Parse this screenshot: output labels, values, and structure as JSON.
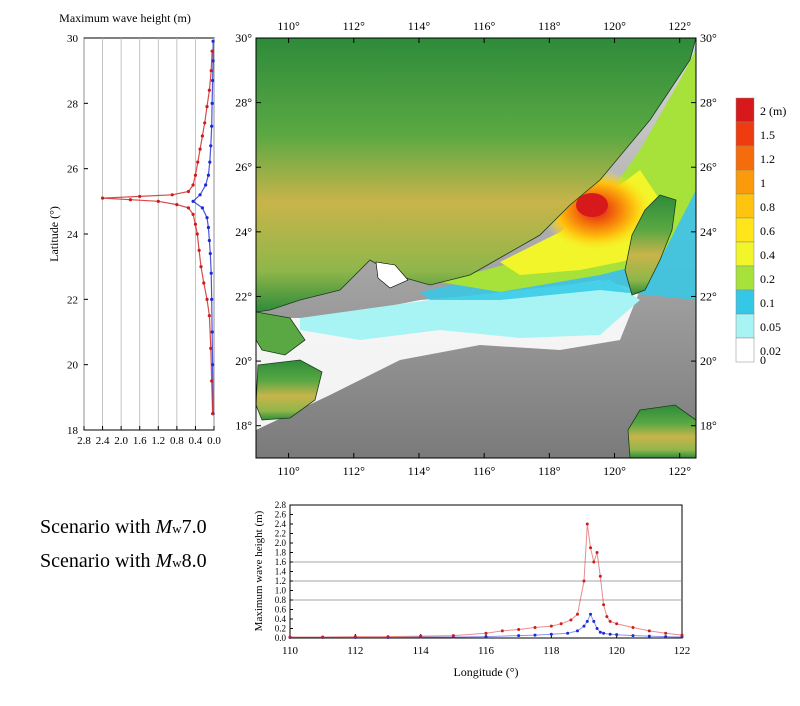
{
  "left_plot": {
    "title": "Maximum wave height (m)",
    "ylabel": "Latitude (°)",
    "xticks": [
      "2.8",
      "2.4",
      "2.0",
      "1.6",
      "1.2",
      "0.8",
      "0.4",
      "0.0"
    ],
    "yticks": [
      "18",
      "20",
      "22",
      "24",
      "26",
      "28",
      "30"
    ],
    "xlim": [
      2.8,
      0.0
    ],
    "ylim": [
      18,
      30
    ]
  },
  "map": {
    "lon_ticks": [
      "110°",
      "112°",
      "114°",
      "116°",
      "118°",
      "120°",
      "122°"
    ],
    "lat_ticks": [
      "18°",
      "20°",
      "22°",
      "24°",
      "26°",
      "28°",
      "30°"
    ],
    "colors": {
      "sea_deep": "#8f8f8f",
      "land_low": "#2e8b3a",
      "land_mid": "#c8b44a",
      "land_high": "#8a5a2b"
    }
  },
  "legend": {
    "unit": "(m)",
    "levels": [
      {
        "label": "2",
        "color": "#d7191c"
      },
      {
        "label": "1.5",
        "color": "#ee3b10"
      },
      {
        "label": "1.2",
        "color": "#f46d0a"
      },
      {
        "label": "1",
        "color": "#fb9b0c"
      },
      {
        "label": "0.8",
        "color": "#fec40f"
      },
      {
        "label": "0.6",
        "color": "#ffe51a"
      },
      {
        "label": "0.4",
        "color": "#f2f52a"
      },
      {
        "label": "0.2",
        "color": "#a6e23a"
      },
      {
        "label": "0.1",
        "color": "#35c8e6"
      },
      {
        "label": "0.05",
        "color": "#a8f4f4"
      },
      {
        "label": "0.02",
        "color": "#ffffff"
      },
      {
        "label": "0",
        "color": ""
      }
    ]
  },
  "scenarios": [
    {
      "prefix": "Scenario with ",
      "mw": "M",
      "sub": "w",
      "mag": "7.0",
      "color": "#1c2bd6"
    },
    {
      "prefix": "Scenario with ",
      "mw": "M",
      "sub": "w",
      "mag": "8.0",
      "color": "#d11b1b"
    }
  ],
  "bottom_plot": {
    "xlabel": "Longitude (°)",
    "ylabel": "Maximum wave height (m)",
    "xticks": [
      "110",
      "112",
      "114",
      "116",
      "118",
      "120",
      "122"
    ],
    "yticks": [
      "0.0",
      "0.2",
      "0.4",
      "0.6",
      "0.8",
      "1.0",
      "1.2",
      "1.4",
      "1.6",
      "1.8",
      "2.0",
      "2.2",
      "2.4",
      "2.6",
      "2.8"
    ],
    "xlim": [
      110,
      122
    ],
    "ylim": [
      0,
      2.8
    ]
  },
  "chart_data": [
    {
      "type": "scatter",
      "title": "Maximum wave height (m)",
      "ylabel": "Latitude (°)",
      "xlim": [
        2.8,
        0.0
      ],
      "ylim": [
        18,
        30
      ],
      "series": [
        {
          "name": "Scenario with Mw7.0",
          "color": "#1c2bd6",
          "x": [
            0.02,
            0.03,
            0.04,
            0.05,
            0.06,
            0.08,
            0.1,
            0.12,
            0.15,
            0.25,
            0.45,
            0.3,
            0.18,
            0.12,
            0.09,
            0.07,
            0.05,
            0.04,
            0.03,
            0.02,
            0.02
          ],
          "y": [
            18.5,
            20.0,
            21.0,
            22.0,
            22.8,
            23.4,
            23.8,
            24.2,
            24.5,
            24.8,
            25.0,
            25.2,
            25.5,
            25.8,
            26.2,
            26.7,
            27.3,
            28.0,
            28.7,
            29.3,
            29.9
          ]
        },
        {
          "name": "Scenario with Mw8.0",
          "color": "#d11b1b",
          "x": [
            0.03,
            0.05,
            0.07,
            0.1,
            0.15,
            0.22,
            0.28,
            0.32,
            0.36,
            0.4,
            0.45,
            0.55,
            0.8,
            1.2,
            1.8,
            2.4,
            1.6,
            0.9,
            0.55,
            0.45,
            0.4,
            0.35,
            0.3,
            0.25,
            0.2,
            0.15,
            0.1,
            0.06,
            0.04
          ],
          "y": [
            18.5,
            19.5,
            20.5,
            21.5,
            22.0,
            22.5,
            23.0,
            23.5,
            24.0,
            24.3,
            24.6,
            24.8,
            24.9,
            25.0,
            25.05,
            25.1,
            25.15,
            25.2,
            25.3,
            25.5,
            25.8,
            26.2,
            26.6,
            27.0,
            27.4,
            27.9,
            28.4,
            29.0,
            29.6
          ]
        }
      ]
    },
    {
      "type": "scatter",
      "xlabel": "Longitude (°)",
      "ylabel": "Maximum wave height (m)",
      "xlim": [
        110,
        122
      ],
      "ylim": [
        0,
        2.8
      ],
      "series": [
        {
          "name": "Scenario with Mw7.0",
          "color": "#1c2bd6",
          "x": [
            110.0,
            111.0,
            112.0,
            113.0,
            114.0,
            115.0,
            116.0,
            117.0,
            117.5,
            118.0,
            118.5,
            118.8,
            119.0,
            119.1,
            119.2,
            119.3,
            119.4,
            119.5,
            119.6,
            119.8,
            120.0,
            120.5,
            121.0,
            121.5,
            122.0
          ],
          "y": [
            0.01,
            0.01,
            0.01,
            0.01,
            0.02,
            0.02,
            0.03,
            0.05,
            0.06,
            0.08,
            0.1,
            0.15,
            0.25,
            0.35,
            0.5,
            0.35,
            0.2,
            0.12,
            0.1,
            0.08,
            0.07,
            0.05,
            0.04,
            0.03,
            0.02
          ]
        },
        {
          "name": "Scenario with Mw8.0",
          "color": "#d11b1b",
          "x": [
            110.0,
            111.0,
            112.0,
            113.0,
            114.0,
            115.0,
            116.0,
            116.5,
            117.0,
            117.5,
            118.0,
            118.3,
            118.6,
            118.8,
            119.0,
            119.1,
            119.2,
            119.3,
            119.4,
            119.5,
            119.6,
            119.7,
            119.8,
            120.0,
            120.5,
            121.0,
            121.5,
            122.0
          ],
          "y": [
            0.02,
            0.02,
            0.03,
            0.03,
            0.04,
            0.05,
            0.1,
            0.15,
            0.18,
            0.22,
            0.25,
            0.3,
            0.38,
            0.5,
            1.2,
            2.4,
            1.9,
            1.6,
            1.8,
            1.3,
            0.7,
            0.45,
            0.35,
            0.3,
            0.22,
            0.15,
            0.1,
            0.06
          ]
        }
      ]
    }
  ]
}
